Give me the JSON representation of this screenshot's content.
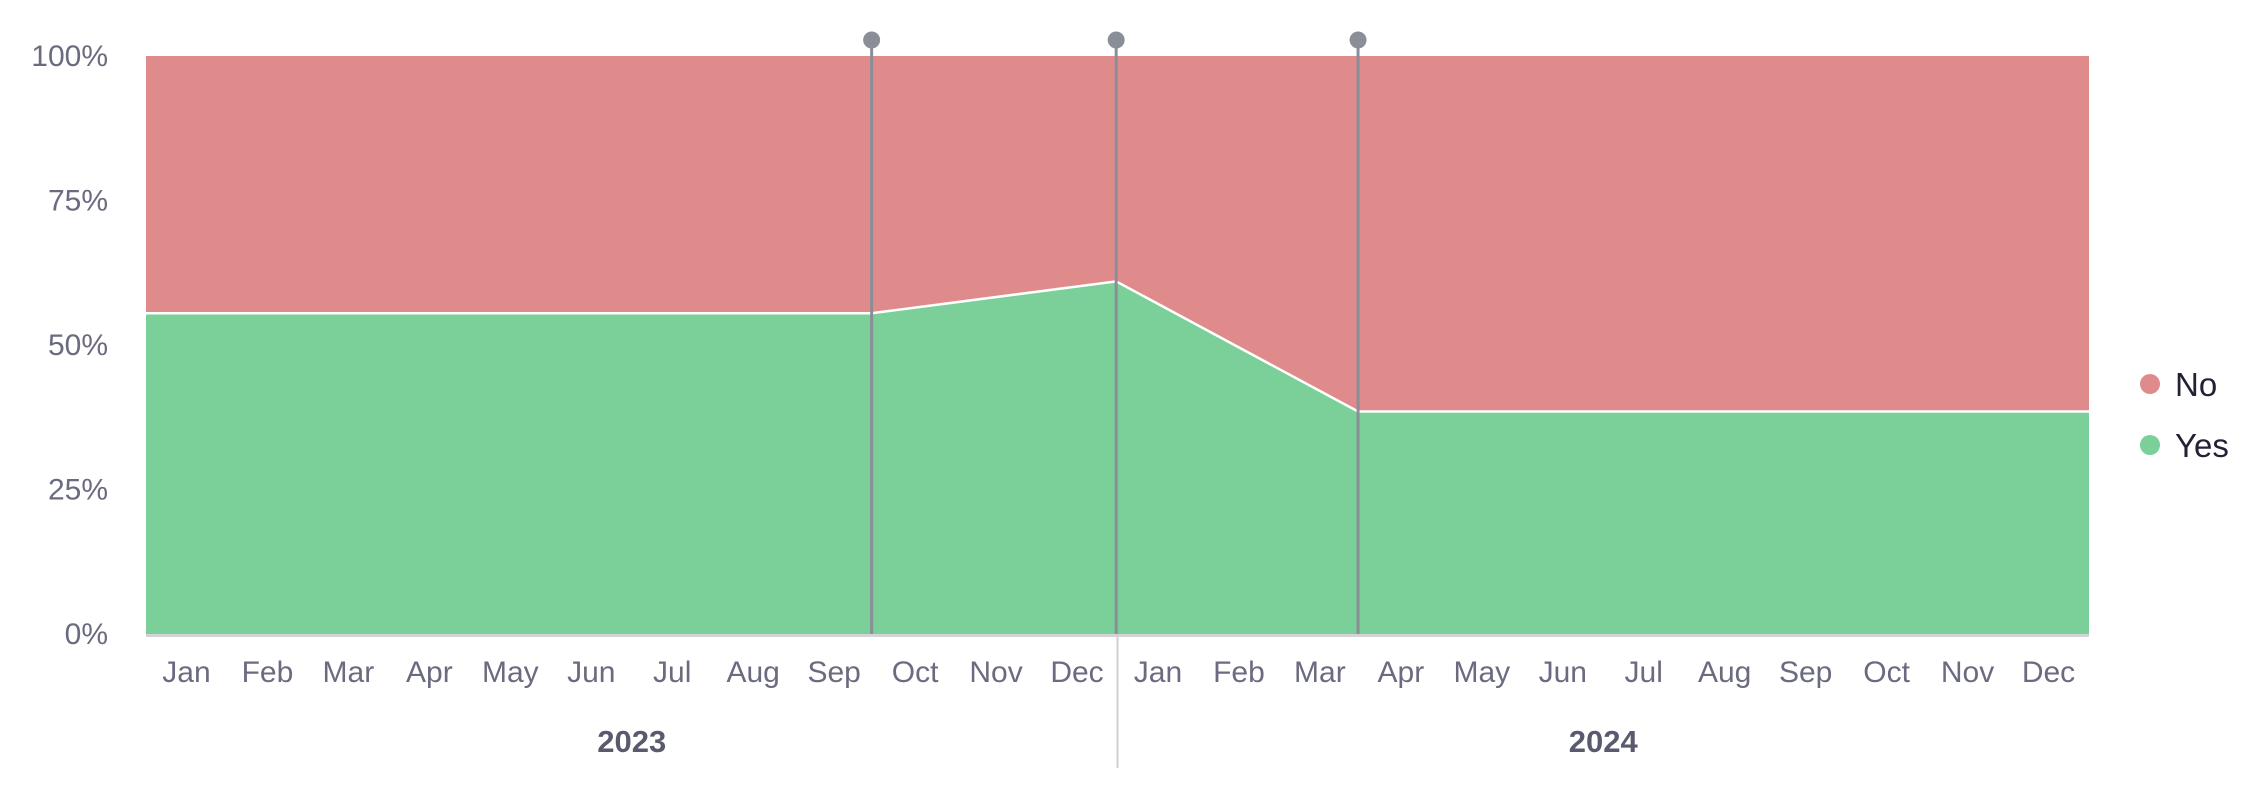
{
  "chart_data": {
    "type": "area",
    "stacked": "percent",
    "months": [
      "Jan",
      "Feb",
      "Mar",
      "Apr",
      "May",
      "Jun",
      "Jul",
      "Aug",
      "Sep",
      "Oct",
      "Nov",
      "Dec",
      "Jan",
      "Feb",
      "Mar",
      "Apr",
      "May",
      "Jun",
      "Jul",
      "Aug",
      "Sep",
      "Oct",
      "Nov",
      "Dec"
    ],
    "years": [
      {
        "label": "2023",
        "from_index": 0,
        "to_index": 11
      },
      {
        "label": "2024",
        "from_index": 12,
        "to_index": 23
      }
    ],
    "x_domain": [
      "2023-01-01",
      "2025-01-01"
    ],
    "points": [
      {
        "date": "2023-01-01",
        "yes": 55.5,
        "no": 44.5
      },
      {
        "date": "2023-10-01",
        "yes": 55.5,
        "no": 44.5
      },
      {
        "date": "2024-01-01",
        "yes": 61,
        "no": 39
      },
      {
        "date": "2024-04-01",
        "yes": 38.5,
        "no": 61.5
      },
      {
        "date": "2025-01-01",
        "yes": 38.5,
        "no": 61.5
      }
    ],
    "series": [
      {
        "name": "No",
        "key": "no",
        "color": "#df8b8b"
      },
      {
        "name": "Yes",
        "key": "yes",
        "color": "#7bcf99"
      }
    ],
    "event_markers": [
      "2023-10-01",
      "2024-01-01",
      "2024-04-01"
    ],
    "y_ticks": [
      "0%",
      "25%",
      "50%",
      "75%",
      "100%"
    ],
    "ylim": [
      0,
      100
    ],
    "grid": true,
    "legend_position": "right"
  }
}
